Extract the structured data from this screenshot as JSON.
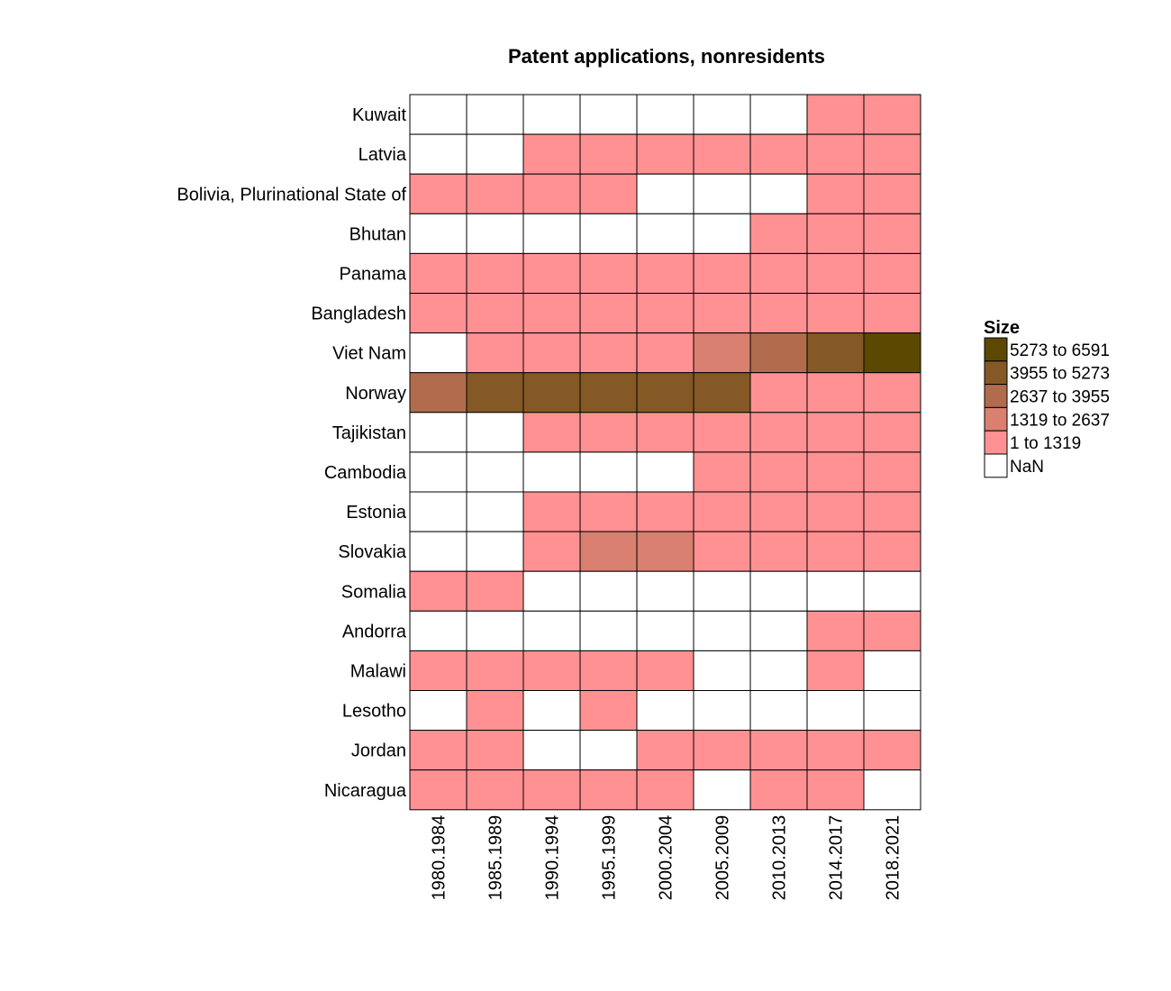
{
  "chart_data": {
    "type": "heatmap",
    "title": "Patent applications, nonresidents",
    "xlabel": "",
    "ylabel": "",
    "columns": [
      "1980.1984",
      "1985.1989",
      "1990.1994",
      "1995.1999",
      "2000.2004",
      "2005.2009",
      "2010.2013",
      "2014.2017",
      "2018.2021"
    ],
    "rows": [
      "Kuwait",
      "Latvia",
      "Bolivia, Plurinational State of",
      "Bhutan",
      "Panama",
      "Bangladesh",
      "Viet Nam",
      "Norway",
      "Tajikistan",
      "Cambodia",
      "Estonia",
      "Slovakia",
      "Somalia",
      "Andorra",
      "Malawi",
      "Lesotho",
      "Jordan",
      "Nicaragua"
    ],
    "cells": [
      [
        null,
        null,
        null,
        null,
        null,
        null,
        null,
        0,
        0
      ],
      [
        null,
        null,
        0,
        0,
        0,
        0,
        0,
        0,
        0
      ],
      [
        0,
        0,
        0,
        0,
        null,
        null,
        null,
        0,
        0
      ],
      [
        null,
        null,
        null,
        null,
        null,
        null,
        0,
        0,
        0
      ],
      [
        0,
        0,
        0,
        0,
        0,
        0,
        0,
        0,
        0
      ],
      [
        0,
        0,
        0,
        0,
        0,
        0,
        0,
        0,
        0
      ],
      [
        null,
        0,
        0,
        0,
        0,
        1,
        2,
        3,
        4
      ],
      [
        2,
        3,
        3,
        3,
        3,
        3,
        0,
        0,
        0
      ],
      [
        null,
        null,
        0,
        0,
        0,
        0,
        0,
        0,
        0
      ],
      [
        null,
        null,
        null,
        null,
        null,
        0,
        0,
        0,
        0
      ],
      [
        null,
        null,
        0,
        0,
        0,
        0,
        0,
        0,
        0
      ],
      [
        null,
        null,
        0,
        1,
        1,
        0,
        0,
        0,
        0
      ],
      [
        0,
        0,
        null,
        null,
        null,
        null,
        null,
        null,
        null
      ],
      [
        null,
        null,
        null,
        null,
        null,
        null,
        null,
        0,
        0
      ],
      [
        0,
        0,
        0,
        0,
        0,
        null,
        null,
        0,
        null
      ],
      [
        null,
        0,
        null,
        0,
        null,
        null,
        null,
        null,
        null
      ],
      [
        0,
        0,
        null,
        null,
        0,
        0,
        0,
        0,
        0
      ],
      [
        0,
        0,
        0,
        0,
        0,
        null,
        0,
        0,
        null
      ]
    ],
    "bins": [
      {
        "label": "1 to 1319",
        "color": "#ff9193"
      },
      {
        "label": "1319 to 2637",
        "color": "#d98070"
      },
      {
        "label": "2637 to 3955",
        "color": "#b06c4d"
      },
      {
        "label": "3955 to 5273",
        "color": "#855926"
      },
      {
        "label": "5273 to 6591",
        "color": "#5c4800"
      }
    ],
    "nan": {
      "label": "NaN",
      "color": "#ffffff"
    },
    "legend": {
      "title": "Size",
      "position": "right"
    }
  }
}
